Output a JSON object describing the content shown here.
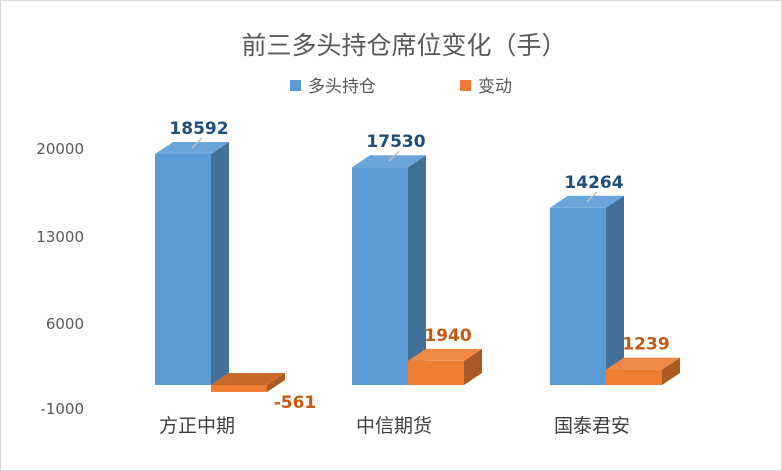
{
  "chart_data": {
    "type": "bar",
    "title": "前三多头持仓席位变化（手）",
    "categories": [
      "方正中期",
      "中信期货",
      "国泰君安"
    ],
    "series": [
      {
        "name": "多头持仓",
        "values": [
          18592,
          17530,
          14264
        ],
        "color": "#5b9bd5",
        "label_color": "#1f4e79"
      },
      {
        "name": "变动",
        "values": [
          -561,
          1940,
          1239
        ],
        "color": "#ed7d31",
        "label_color": "#c55a11"
      }
    ],
    "y_ticks": [
      "20000",
      "13000",
      "6000",
      "-1000"
    ],
    "ylim": [
      -1000,
      20000
    ],
    "legend_position": "top",
    "grid": false,
    "style": "3d-column"
  }
}
